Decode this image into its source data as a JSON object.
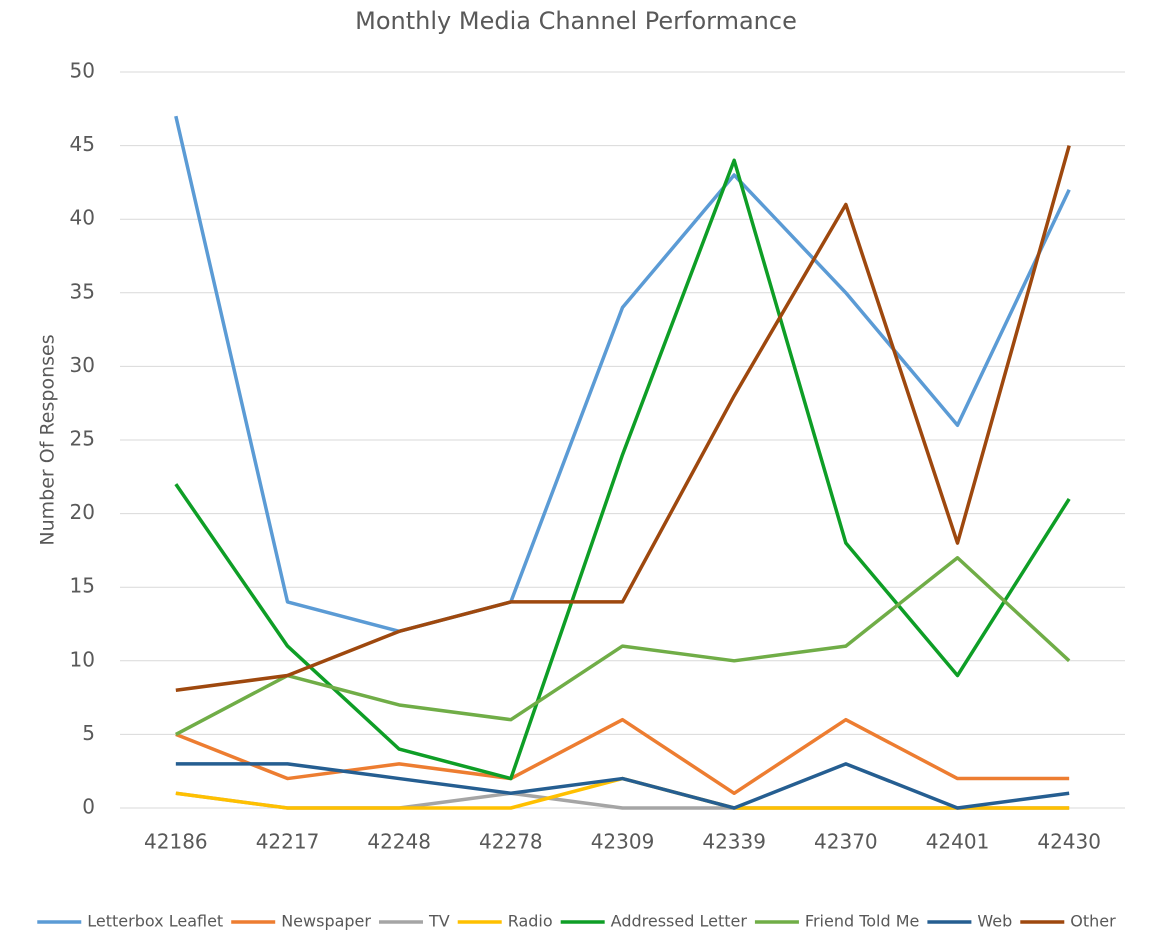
{
  "chart_data": {
    "type": "line",
    "title": "Monthly Media Channel Performance",
    "y_label": "Number Of Responses",
    "categories": [
      42186,
      42217,
      42248,
      42278,
      42309,
      42339,
      42370,
      42401,
      42430
    ],
    "series": [
      {
        "name": "Letterbox Leaflet",
        "color": "#5b9bd5",
        "values": [
          47,
          14,
          12,
          14,
          34,
          43,
          35,
          26,
          42
        ]
      },
      {
        "name": "Newspaper",
        "color": "#ed7d31",
        "values": [
          5,
          2,
          3,
          2,
          6,
          1,
          6,
          2,
          2
        ]
      },
      {
        "name": "TV",
        "color": "#a5a5a5",
        "values": [
          1,
          0,
          0,
          1,
          0,
          0,
          0,
          0,
          0
        ]
      },
      {
        "name": "Radio",
        "color": "#ffc000",
        "values": [
          1,
          0,
          0,
          0,
          2,
          0,
          0,
          0,
          0
        ]
      },
      {
        "name": "Addressed Letter",
        "color": "#0e9e26",
        "values": [
          22,
          11,
          4,
          2,
          24,
          44,
          18,
          9,
          21
        ]
      },
      {
        "name": "Friend Told Me",
        "color": "#70ad47",
        "values": [
          5,
          9,
          7,
          6,
          11,
          10,
          11,
          17,
          10
        ]
      },
      {
        "name": "Web",
        "color": "#255e91",
        "values": [
          3,
          3,
          2,
          1,
          2,
          0,
          3,
          0,
          1
        ]
      },
      {
        "name": "Other",
        "color": "#9e480e",
        "values": [
          8,
          9,
          12,
          14,
          14,
          28,
          41,
          18,
          45
        ]
      }
    ],
    "ylim": [
      0,
      50
    ],
    "yticks": [
      0,
      5,
      10,
      15,
      20,
      25,
      30,
      35,
      40,
      45,
      50
    ],
    "grid": true,
    "legend": "bottom"
  }
}
